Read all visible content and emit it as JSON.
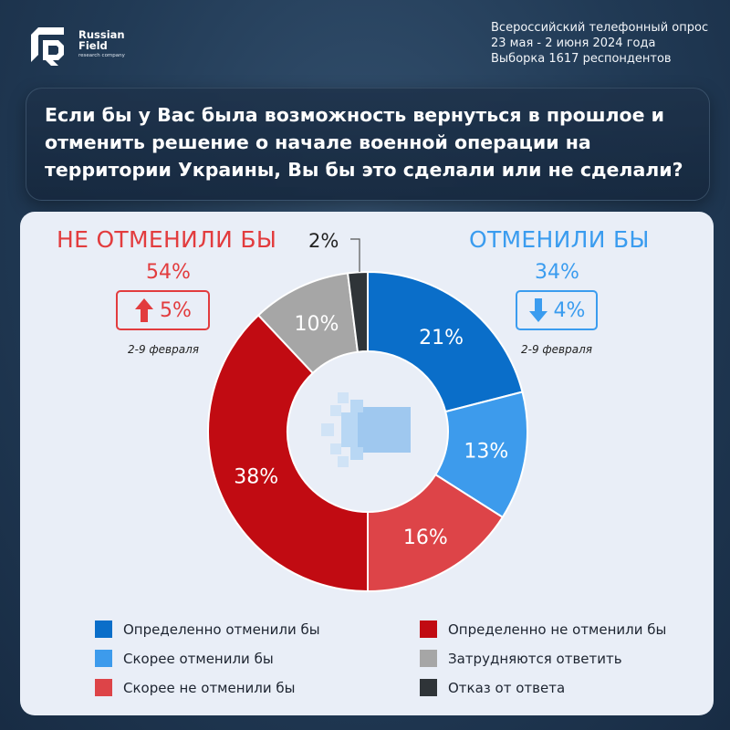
{
  "brand": {
    "name_line1": "Russian",
    "name_line2": "Field",
    "tagline": "research company"
  },
  "survey_info": {
    "line1": "Всероссийский телефонный опрос",
    "line2": "23 мая - 2 июня 2024 года",
    "line3": "Выборка 1617 респондентов"
  },
  "question": "Если бы у Вас была возможность вернуться в прошлое и отменить решение о начале военной операции на территории Украины, Вы бы это сделали или не сделали?",
  "summary": {
    "left": {
      "title": "НЕ ОТМЕНИЛИ БЫ",
      "percent": "54%",
      "delta": "5%",
      "delta_direction": "up",
      "compared_to": "2-9 февраля",
      "color": "#e23c3e"
    },
    "right": {
      "title": "ОТМЕНИЛИ БЫ",
      "percent": "34%",
      "delta": "4%",
      "delta_direction": "down",
      "compared_to": "2-9 февраля",
      "color": "#3a9cef"
    },
    "refusal_label": "2%"
  },
  "chart_data": {
    "type": "pie",
    "variant": "donut",
    "categories": [
      "Определенно отменили бы",
      "Скорее отменили бы",
      "Скорее не отменили бы",
      "Определенно не отменили бы",
      "Затрудняются ответить",
      "Отказ от ответа"
    ],
    "values": [
      21,
      13,
      16,
      38,
      10,
      2
    ],
    "value_labels": [
      "21%",
      "13%",
      "16%",
      "38%",
      "10%",
      ""
    ],
    "colors": [
      "#0a6ec9",
      "#3d9bec",
      "#dd4448",
      "#c10b12",
      "#a6a6a6",
      "#2f3438"
    ],
    "start_angle_deg": 0,
    "direction": "clockwise",
    "legend_position": "bottom"
  },
  "legend": [
    {
      "label": "Определенно отменили бы",
      "color": "#0a6ec9"
    },
    {
      "label": "Определенно не отменили бы",
      "color": "#c10b12"
    },
    {
      "label": "Скорее отменили бы",
      "color": "#3d9bec"
    },
    {
      "label": "Затрудняются ответить",
      "color": "#a6a6a6"
    },
    {
      "label": "Скорее не отменили бы",
      "color": "#dd4448"
    },
    {
      "label": "Отказ от ответа",
      "color": "#2f3438"
    }
  ]
}
